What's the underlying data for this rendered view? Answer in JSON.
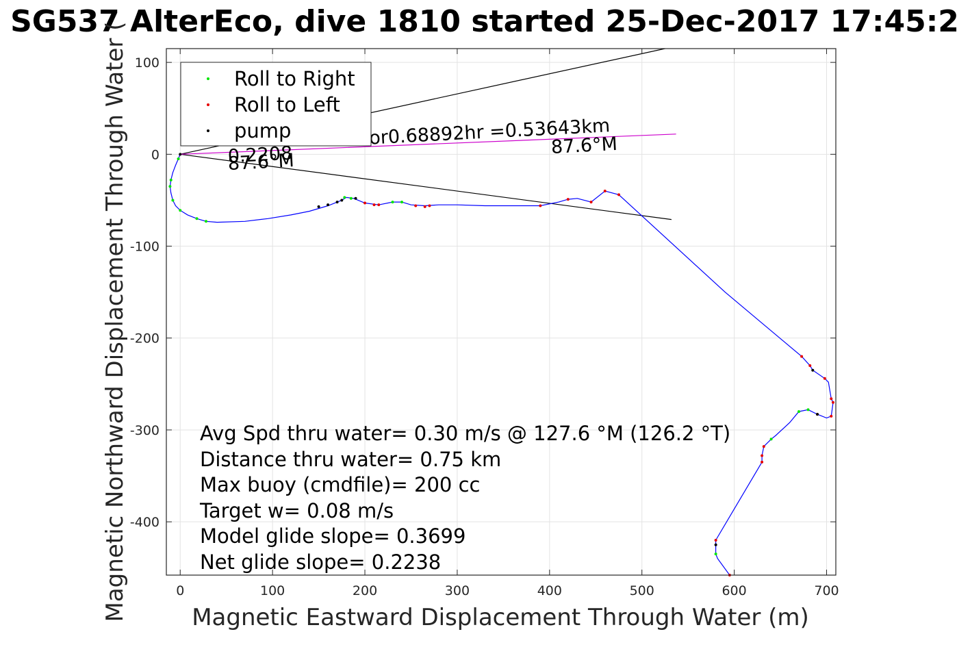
{
  "chart_data": {
    "type": "scatter",
    "title": "SG537 AlterEco, dive 1810 started 25-Dec-2017 17:45:2",
    "xlabel": "Magnetic Eastward Displacement Through Water (m)",
    "ylabel": "Magnetic Northward Displacement Through Water (",
    "xlim": [
      -15,
      710
    ],
    "ylim": [
      -458,
      115
    ],
    "xticks": [
      0,
      100,
      200,
      300,
      400,
      500,
      600,
      700
    ],
    "yticks": [
      100,
      0,
      -100,
      -200,
      -300,
      -400
    ],
    "grid": true,
    "legend_position": "top-left",
    "legend": [
      {
        "label": "Roll to Right",
        "color": "#00e600"
      },
      {
        "label": "Roll to Left",
        "color": "#e60000"
      },
      {
        "label": "pump",
        "color": "#000000"
      }
    ],
    "track": {
      "color": "#0000ff",
      "points": [
        [
          0,
          0
        ],
        [
          -2,
          -5
        ],
        [
          -5,
          -12
        ],
        [
          -8,
          -20
        ],
        [
          -10,
          -28
        ],
        [
          -11,
          -35
        ],
        [
          -10,
          -42
        ],
        [
          -8,
          -50
        ],
        [
          -5,
          -56
        ],
        [
          0,
          -61
        ],
        [
          8,
          -66
        ],
        [
          18,
          -70
        ],
        [
          28,
          -73
        ],
        [
          40,
          -74
        ],
        [
          70,
          -73
        ],
        [
          95,
          -70
        ],
        [
          120,
          -66
        ],
        [
          140,
          -62
        ],
        [
          160,
          -56
        ],
        [
          175,
          -50
        ],
        [
          180,
          -47
        ],
        [
          188,
          -48
        ],
        [
          200,
          -53
        ],
        [
          215,
          -55
        ],
        [
          230,
          -52
        ],
        [
          240,
          -52
        ],
        [
          250,
          -55
        ],
        [
          265,
          -56
        ],
        [
          280,
          -55
        ],
        [
          300,
          -55
        ],
        [
          330,
          -56
        ],
        [
          360,
          -56
        ],
        [
          390,
          -56
        ],
        [
          410,
          -52
        ],
        [
          420,
          -49
        ],
        [
          430,
          -48
        ],
        [
          445,
          -52
        ],
        [
          460,
          -40
        ],
        [
          475,
          -44
        ],
        [
          590,
          -150
        ],
        [
          673,
          -220
        ],
        [
          682,
          -230
        ],
        [
          685,
          -235
        ],
        [
          698,
          -244
        ],
        [
          702,
          -248
        ],
        [
          705,
          -266
        ],
        [
          707,
          -270
        ],
        [
          705,
          -285
        ],
        [
          700,
          -287
        ],
        [
          690,
          -283
        ],
        [
          680,
          -278
        ],
        [
          670,
          -280
        ],
        [
          660,
          -292
        ],
        [
          645,
          -306
        ],
        [
          640,
          -310
        ],
        [
          632,
          -318
        ],
        [
          630,
          -328
        ],
        [
          630,
          -335
        ],
        [
          580,
          -420
        ],
        [
          580,
          -435
        ],
        [
          582,
          -440
        ],
        [
          595,
          -458
        ]
      ]
    },
    "roll_right_points": [
      [
        -10,
        -28
      ],
      [
        -11,
        -35
      ],
      [
        -8,
        -50
      ],
      [
        0,
        -61
      ],
      [
        18,
        -70
      ],
      [
        28,
        -73
      ],
      [
        178,
        -47
      ],
      [
        185,
        -48
      ],
      [
        230,
        -52
      ],
      [
        240,
        -52
      ],
      [
        670,
        -280
      ],
      [
        680,
        -278
      ],
      [
        640,
        -310
      ],
      [
        580,
        -435
      ],
      [
        -2,
        -5
      ]
    ],
    "roll_left_points": [
      [
        200,
        -53
      ],
      [
        210,
        -55
      ],
      [
        215,
        -55
      ],
      [
        255,
        -56
      ],
      [
        265,
        -57
      ],
      [
        270,
        -56
      ],
      [
        390,
        -56
      ],
      [
        420,
        -49
      ],
      [
        445,
        -52
      ],
      [
        460,
        -40
      ],
      [
        475,
        -44
      ],
      [
        673,
        -220
      ],
      [
        682,
        -230
      ],
      [
        698,
        -244
      ],
      [
        705,
        -266
      ],
      [
        707,
        -270
      ],
      [
        705,
        -285
      ],
      [
        690,
        -283
      ],
      [
        632,
        -318
      ],
      [
        630,
        -328
      ],
      [
        630,
        -335
      ],
      [
        580,
        -420
      ],
      [
        595,
        -458
      ]
    ],
    "pump_points": [
      [
        150,
        -57
      ],
      [
        160,
        -55
      ],
      [
        170,
        -52
      ],
      [
        175,
        -50
      ],
      [
        190,
        -48
      ],
      [
        685,
        -235
      ],
      [
        690,
        -283
      ],
      [
        0,
        0
      ],
      [
        580,
        -425
      ]
    ],
    "heading_lines": [
      {
        "from": [
          0,
          0
        ],
        "to": [
          525,
          115
        ],
        "color": "#000000"
      },
      {
        "from": [
          0,
          0
        ],
        "to": [
          532,
          -71
        ],
        "color": "#000000"
      },
      {
        "from": [
          0,
          0
        ],
        "to": [
          537,
          22
        ],
        "color": "#cc00cc"
      }
    ],
    "annotations": [
      {
        "text": "or0.68892hr =0.53643km",
        "at": [
          205,
          11
        ],
        "rotation": -3
      },
      {
        "text": "87.6°M",
        "at": [
          402,
          1
        ],
        "rotation": -3
      },
      {
        "text": "87.6°M",
        "at": [
          52,
          -17
        ],
        "rotation": -3
      },
      {
        "text": "0.2208",
        "at": [
          52,
          -9
        ],
        "rotation": -3
      }
    ],
    "stats": [
      "Avg Spd thru water=  0.30 m/s @ 127.6 °M (126.2 °T)",
      "Distance thru water=  0.75 km",
      "Max buoy (cmdfile)= 200 cc",
      "Target w= 0.08 m/s",
      "Model glide slope= 0.3699",
      "Net glide slope= 0.2238"
    ]
  }
}
